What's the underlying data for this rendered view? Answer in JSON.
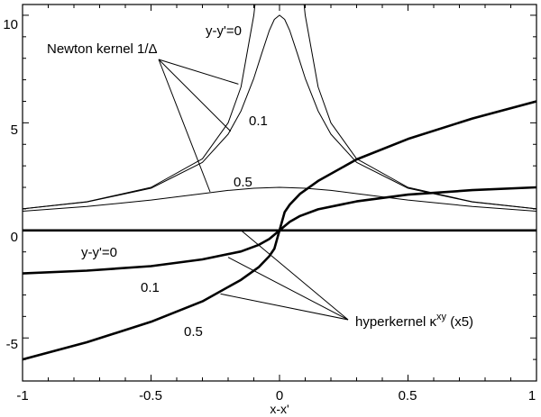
{
  "chart_data": {
    "type": "line",
    "title": "",
    "xlabel": "x-x'",
    "ylabel": "",
    "xlim": [
      -1,
      1
    ],
    "ylim": [
      -7,
      10.5
    ],
    "grid": false,
    "x_ticks": [
      {
        "value": -1,
        "label": "-1"
      },
      {
        "value": -0.5,
        "label": "-0.5"
      },
      {
        "value": 0,
        "label": "0"
      },
      {
        "value": 0.5,
        "label": "0.5"
      },
      {
        "value": 1,
        "label": "1"
      }
    ],
    "y_ticks": [
      {
        "value": -5,
        "label": "-5"
      },
      {
        "value": 0,
        "label": "0"
      },
      {
        "value": 5,
        "label": "5"
      },
      {
        "value": 10,
        "label": "10"
      }
    ],
    "series": [
      {
        "name": "",
        "role": "newton",
        "yy": 0,
        "stroke": "thin",
        "x": [
          -1,
          -0.75,
          -0.5,
          -0.3,
          -0.2,
          -0.15,
          -0.1,
          -0.09
        ],
        "y": [
          1.0,
          1.33,
          2.0,
          3.33,
          5.0,
          6.67,
          10.0,
          11.1
        ]
      },
      {
        "name": "",
        "role": "newton",
        "yy": 0,
        "stroke": "thin",
        "x": [
          0.09,
          0.1,
          0.15,
          0.2,
          0.3,
          0.5,
          0.75,
          1
        ],
        "y": [
          11.1,
          10.0,
          6.67,
          5.0,
          3.33,
          2.0,
          1.33,
          1.0
        ]
      },
      {
        "name": "",
        "role": "newton",
        "yy": 0.1,
        "stroke": "thin",
        "x": [
          -1,
          -0.75,
          -0.5,
          -0.3,
          -0.2,
          -0.15,
          -0.1,
          -0.07,
          -0.04,
          -0.02,
          0,
          0.02,
          0.04,
          0.07,
          0.1,
          0.15,
          0.2,
          0.3,
          0.5,
          0.75,
          1
        ],
        "y": [
          1.0,
          1.32,
          1.96,
          3.16,
          4.47,
          5.55,
          7.07,
          8.19,
          9.28,
          9.81,
          10.0,
          9.81,
          9.28,
          8.19,
          7.07,
          5.55,
          4.47,
          3.16,
          1.96,
          1.32,
          1.0
        ]
      },
      {
        "name": "",
        "role": "newton",
        "yy": 0.5,
        "stroke": "thin",
        "x": [
          -1,
          -0.75,
          -0.5,
          -0.3,
          -0.2,
          -0.1,
          0,
          0.1,
          0.2,
          0.3,
          0.5,
          0.75,
          1
        ],
        "y": [
          0.89,
          1.11,
          1.41,
          1.71,
          1.86,
          1.96,
          2.0,
          1.96,
          1.86,
          1.71,
          1.41,
          1.11,
          0.89
        ]
      },
      {
        "name": "",
        "role": "hyperkernel",
        "yy": 0,
        "stroke": "thick",
        "x": [
          -1,
          1
        ],
        "y": [
          0,
          0
        ]
      },
      {
        "name": "",
        "role": "hyperkernel",
        "yy": 0.1,
        "stroke": "thick",
        "x": [
          -1,
          -0.75,
          -0.5,
          -0.3,
          -0.15,
          -0.08,
          -0.04,
          -0.02,
          0,
          0.02,
          0.04,
          0.08,
          0.15,
          0.3,
          0.5,
          0.75,
          1
        ],
        "y": [
          -2.0,
          -1.87,
          -1.66,
          -1.35,
          -0.98,
          -0.67,
          -0.4,
          -0.2,
          0,
          0.2,
          0.4,
          0.67,
          0.98,
          1.35,
          1.66,
          1.87,
          2.0
        ]
      },
      {
        "name": "",
        "role": "hyperkernel",
        "yy": 0.5,
        "stroke": "thick",
        "x": [
          -1,
          -0.75,
          -0.5,
          -0.3,
          -0.15,
          -0.08,
          -0.04,
          -0.02,
          0,
          0.02,
          0.04,
          0.08,
          0.15,
          0.3,
          0.5,
          0.75,
          1
        ],
        "y": [
          -6.0,
          -5.2,
          -4.25,
          -3.3,
          -2.3,
          -1.7,
          -1.2,
          -0.85,
          0,
          0.85,
          1.2,
          1.7,
          2.3,
          3.3,
          4.25,
          5.2,
          6.0
        ]
      }
    ],
    "annotations": [
      {
        "text": "y-y'=0",
        "kind": "label"
      },
      {
        "text": "Newton kernel 1/Δ",
        "kind": "callout"
      },
      {
        "text": "0.1",
        "kind": "label"
      },
      {
        "text": "0.5",
        "kind": "label"
      },
      {
        "text": "y-y'=0",
        "kind": "label"
      },
      {
        "text": "0.1",
        "kind": "label"
      },
      {
        "text": "0.5",
        "kind": "label"
      },
      {
        "text": "hyperkernel κ",
        "kind": "callout"
      },
      {
        "text": "xy",
        "kind": "superscript"
      },
      {
        "text": " (x5)",
        "kind": "suffix"
      }
    ]
  }
}
